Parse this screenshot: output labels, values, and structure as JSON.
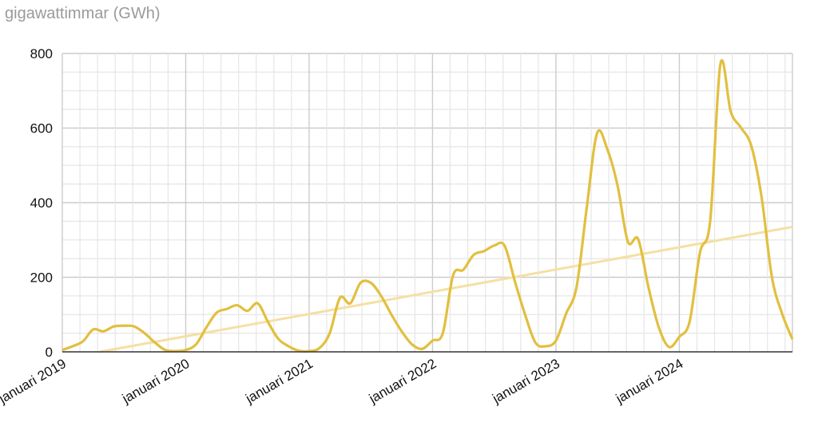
{
  "chart_data": {
    "type": "line",
    "title": "",
    "ylabel": "gigawattimmar (GWh)",
    "xlabel": "",
    "ylim": [
      0,
      800
    ],
    "yticks": [
      0,
      200,
      400,
      600,
      800
    ],
    "xticks": [
      "januari 2019",
      "januari 2020",
      "januari 2021",
      "januari 2022",
      "januari 2023",
      "januari 2024"
    ],
    "x_start": "2019-01",
    "x_end": "2024-12",
    "grid": true,
    "colors": {
      "series": "#e2bf3f",
      "trend": "#f5e0a3",
      "grid_major": "#cccccc",
      "grid_minor": "#e6e6e6",
      "axis": "#333333"
    },
    "series": [
      {
        "values": [
          5,
          15,
          28,
          60,
          55,
          68,
          70,
          68,
          50,
          25,
          5,
          2,
          5,
          20,
          65,
          105,
          115,
          125,
          110,
          130,
          80,
          35,
          15,
          3,
          2,
          10,
          50,
          145,
          130,
          185,
          185,
          150,
          100,
          55,
          20,
          8,
          30,
          50,
          205,
          220,
          260,
          270,
          285,
          285,
          190,
          100,
          25,
          15,
          30,
          103,
          173,
          387,
          586,
          543,
          445,
          295,
          302,
          173,
          66,
          13,
          40,
          81,
          265,
          351,
          772,
          644,
          601,
          552,
          415,
          201,
          102,
          34
        ]
      }
    ],
    "trendline": {
      "start": {
        "x": "2019-01",
        "y": -18
      },
      "end": {
        "x": "2024-12",
        "y": 335
      }
    }
  }
}
